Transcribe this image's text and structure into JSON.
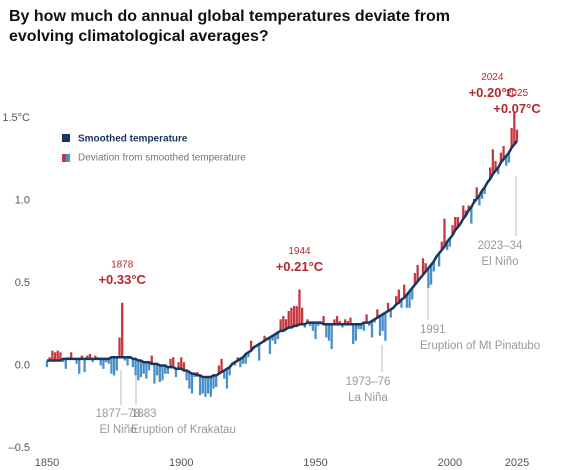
{
  "chart_data": {
    "type": "deviation-bars",
    "title": "By how much do annual global temperatures deviate from evolving climatological averages?",
    "x": [
      1850,
      1851,
      1852,
      1853,
      1854,
      1855,
      1856,
      1857,
      1858,
      1859,
      1860,
      1861,
      1862,
      1863,
      1864,
      1865,
      1866,
      1867,
      1868,
      1869,
      1870,
      1871,
      1872,
      1873,
      1874,
      1875,
      1876,
      1877,
      1878,
      1879,
      1880,
      1881,
      1882,
      1883,
      1884,
      1885,
      1886,
      1887,
      1888,
      1889,
      1890,
      1891,
      1892,
      1893,
      1894,
      1895,
      1896,
      1897,
      1898,
      1899,
      1900,
      1901,
      1902,
      1903,
      1904,
      1905,
      1906,
      1907,
      1908,
      1909,
      1910,
      1911,
      1912,
      1913,
      1914,
      1915,
      1916,
      1917,
      1918,
      1919,
      1920,
      1921,
      1922,
      1923,
      1924,
      1925,
      1926,
      1927,
      1928,
      1929,
      1930,
      1931,
      1932,
      1933,
      1934,
      1935,
      1936,
      1937,
      1938,
      1939,
      1940,
      1941,
      1942,
      1943,
      1944,
      1945,
      1946,
      1947,
      1948,
      1949,
      1950,
      1951,
      1952,
      1953,
      1954,
      1955,
      1956,
      1957,
      1958,
      1959,
      1960,
      1961,
      1962,
      1963,
      1964,
      1965,
      1966,
      1967,
      1968,
      1969,
      1970,
      1971,
      1972,
      1973,
      1974,
      1975,
      1976,
      1977,
      1978,
      1979,
      1980,
      1981,
      1982,
      1983,
      1984,
      1985,
      1986,
      1987,
      1988,
      1989,
      1990,
      1991,
      1992,
      1993,
      1994,
      1995,
      1996,
      1997,
      1998,
      1999,
      2000,
      2001,
      2002,
      2003,
      2004,
      2005,
      2006,
      2007,
      2008,
      2009,
      2010,
      2011,
      2012,
      2013,
      2014,
      2015,
      2016,
      2017,
      2018,
      2019,
      2020,
      2021,
      2022,
      2023,
      2024,
      2025
    ],
    "series": [
      {
        "name": "Smoothed temperature",
        "color": "#17375e",
        "values": [
          0.03,
          0.03,
          0.03,
          0.03,
          0.03,
          0.03,
          0.04,
          0.04,
          0.04,
          0.04,
          0.04,
          0.04,
          0.04,
          0.04,
          0.04,
          0.04,
          0.04,
          0.04,
          0.04,
          0.04,
          0.04,
          0.04,
          0.04,
          0.04,
          0.05,
          0.05,
          0.05,
          0.05,
          0.05,
          0.05,
          0.05,
          0.05,
          0.04,
          0.04,
          0.03,
          0.03,
          0.02,
          0.02,
          0.02,
          0.01,
          0.01,
          0.01,
          0.0,
          0.0,
          0.0,
          -0.01,
          -0.01,
          -0.01,
          -0.02,
          -0.02,
          -0.02,
          -0.03,
          -0.03,
          -0.04,
          -0.05,
          -0.05,
          -0.06,
          -0.06,
          -0.07,
          -0.07,
          -0.07,
          -0.07,
          -0.06,
          -0.06,
          -0.05,
          -0.04,
          -0.03,
          -0.02,
          -0.01,
          0.01,
          0.02,
          0.03,
          0.04,
          0.05,
          0.07,
          0.08,
          0.09,
          0.11,
          0.12,
          0.13,
          0.14,
          0.15,
          0.16,
          0.17,
          0.18,
          0.19,
          0.2,
          0.21,
          0.21,
          0.22,
          0.23,
          0.23,
          0.24,
          0.24,
          0.25,
          0.25,
          0.25,
          0.26,
          0.26,
          0.26,
          0.26,
          0.26,
          0.26,
          0.25,
          0.25,
          0.25,
          0.25,
          0.25,
          0.25,
          0.25,
          0.25,
          0.25,
          0.25,
          0.25,
          0.25,
          0.25,
          0.25,
          0.25,
          0.26,
          0.26,
          0.26,
          0.27,
          0.28,
          0.29,
          0.3,
          0.31,
          0.32,
          0.33,
          0.34,
          0.35,
          0.37,
          0.38,
          0.4,
          0.41,
          0.43,
          0.45,
          0.47,
          0.49,
          0.51,
          0.53,
          0.55,
          0.57,
          0.59,
          0.61,
          0.63,
          0.66,
          0.68,
          0.7,
          0.72,
          0.75,
          0.77,
          0.79,
          0.82,
          0.84,
          0.86,
          0.89,
          0.91,
          0.94,
          0.96,
          0.99,
          1.01,
          1.03,
          1.06,
          1.08,
          1.11,
          1.13,
          1.16,
          1.18,
          1.2,
          1.23,
          1.25,
          1.27,
          1.29,
          1.32,
          1.34,
          1.36
        ]
      },
      {
        "name": "Deviation from smoothed temperature",
        "color": "#c8363d",
        "negative_color": "#4b8fc9",
        "values": [
          -0.04,
          0.02,
          0.06,
          0.05,
          0.06,
          0.05,
          -0.02,
          -0.06,
          0.01,
          0.04,
          0.0,
          -0.03,
          -0.09,
          0.02,
          -0.08,
          0.02,
          0.03,
          -0.02,
          0.02,
          0.01,
          -0.04,
          -0.06,
          -0.02,
          -0.03,
          -0.1,
          -0.11,
          -0.08,
          0.12,
          0.33,
          -0.02,
          -0.05,
          -0.01,
          -0.05,
          -0.1,
          -0.12,
          -0.1,
          -0.07,
          -0.1,
          -0.05,
          0.05,
          -0.12,
          -0.07,
          -0.1,
          -0.09,
          -0.05,
          -0.04,
          0.05,
          0.06,
          -0.05,
          0.04,
          0.07,
          0.05,
          -0.06,
          -0.1,
          -0.12,
          -0.02,
          0.02,
          -0.12,
          -0.1,
          -0.12,
          -0.1,
          -0.12,
          -0.08,
          -0.07,
          0.05,
          0.08,
          -0.05,
          -0.12,
          -0.05,
          -0.01,
          -0.02,
          0.02,
          -0.05,
          -0.04,
          -0.06,
          -0.03,
          0.06,
          -0.01,
          -0.01,
          -0.1,
          0.0,
          0.03,
          0.01,
          -0.1,
          -0.03,
          -0.06,
          -0.04,
          0.07,
          0.09,
          0.06,
          0.1,
          0.12,
          0.12,
          0.12,
          0.21,
          0.1,
          -0.02,
          0.02,
          -0.02,
          -0.05,
          -0.1,
          -0.02,
          -0.01,
          0.05,
          -0.08,
          -0.1,
          -0.15,
          0.03,
          0.05,
          0.02,
          -0.02,
          0.03,
          0.02,
          0.04,
          -0.12,
          -0.1,
          -0.03,
          -0.03,
          -0.05,
          0.05,
          -0.02,
          -0.1,
          -0.02,
          0.05,
          -0.12,
          -0.1,
          -0.17,
          0.05,
          -0.05,
          0.0,
          0.05,
          0.08,
          -0.05,
          0.08,
          -0.08,
          -0.1,
          -0.07,
          0.07,
          0.1,
          0.0,
          0.1,
          0.05,
          -0.12,
          -0.12,
          -0.06,
          0.0,
          -0.08,
          0.05,
          0.17,
          -0.05,
          -0.05,
          0.06,
          0.08,
          0.06,
          0.01,
          0.08,
          0.03,
          0.03,
          -0.1,
          0.02,
          0.07,
          -0.06,
          -0.05,
          -0.04,
          0.0,
          0.07,
          0.15,
          0.06,
          -0.04,
          0.06,
          0.08,
          -0.06,
          -0.06,
          0.12,
          0.2,
          0.07
        ],
        "value_labels": [
          null,
          null,
          null,
          null,
          null,
          null,
          null,
          null,
          null,
          null,
          null,
          null,
          null,
          null,
          null,
          null,
          null,
          null,
          null,
          null,
          null,
          null,
          null,
          null,
          null,
          null,
          null,
          null,
          "+0.33°C",
          null,
          null,
          null,
          null,
          null,
          null,
          null,
          null,
          null,
          null,
          null,
          null,
          null,
          null,
          null,
          null,
          null,
          null,
          null,
          null,
          null,
          null,
          null,
          null,
          null,
          null,
          null,
          null,
          null,
          null,
          null,
          null,
          null,
          null,
          null,
          null,
          null,
          null,
          null,
          null,
          null,
          null,
          null,
          null,
          null,
          null,
          null,
          null,
          null,
          null,
          null,
          null,
          null,
          null,
          null,
          null,
          null,
          null,
          null,
          null,
          null,
          null,
          null,
          null,
          null,
          "+0.21°C",
          null,
          null,
          null,
          null,
          null,
          null,
          null,
          null,
          null,
          null,
          null,
          null,
          null,
          null,
          null,
          null,
          null,
          null,
          null,
          null,
          null,
          null,
          null,
          null,
          null,
          null,
          null,
          null,
          null,
          null,
          null,
          null,
          null,
          null,
          null,
          null,
          null,
          null,
          null,
          null,
          null,
          null,
          null,
          null,
          null,
          null,
          null,
          null,
          null,
          null,
          null,
          null,
          null,
          null,
          null,
          null,
          null,
          null,
          null,
          null,
          null,
          null,
          null,
          null,
          null,
          null,
          null,
          null,
          null,
          null,
          null,
          null,
          null,
          null,
          null,
          null,
          null,
          null,
          null,
          "+0.20°C",
          "+0.07°C"
        ]
      }
    ],
    "xlim": [
      1850,
      2025
    ],
    "xticks": [
      1850,
      1900,
      1950,
      2000,
      2025
    ],
    "ylim": [
      -0.5,
      1.5
    ],
    "yticks": [
      {
        "value": -0.5,
        "label": "–0.5"
      },
      {
        "value": 0,
        "label": "0.0"
      },
      0.5,
      {
        "value": 1,
        "label": "1.0"
      },
      {
        "value": 1.5,
        "label": "1.5°C"
      }
    ],
    "annotations": [
      {
        "lines": [
          "1877–78",
          "El Niño"
        ]
      },
      {
        "lines": [
          "1883",
          "Eruption of Krakatau"
        ]
      },
      {
        "lines": [
          "1973–76",
          "La Niña"
        ]
      },
      {
        "lines": [
          "1991",
          "Eruption of Mt Pinatubo"
        ]
      },
      {
        "lines": [
          "2023–34",
          "El Niño"
        ]
      }
    ]
  }
}
